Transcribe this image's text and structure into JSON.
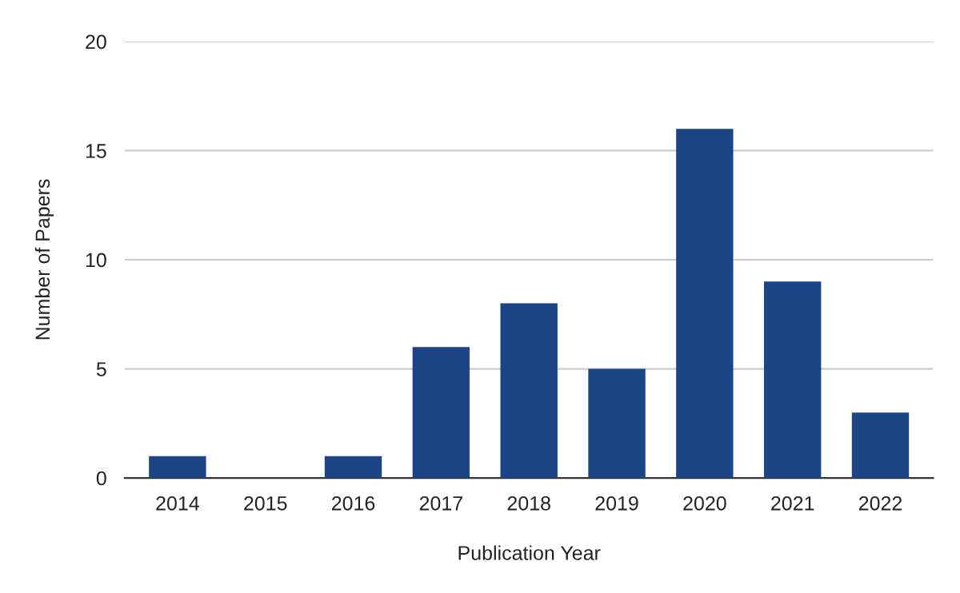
{
  "chart_data": {
    "type": "bar",
    "xlabel": "Publication Year",
    "ylabel": "Number of Papers",
    "categories": [
      "2014",
      "2015",
      "2016",
      "2017",
      "2018",
      "2019",
      "2020",
      "2021",
      "2022"
    ],
    "values": [
      1,
      0,
      1,
      6,
      8,
      5,
      16,
      9,
      3
    ],
    "color": "#1c4587",
    "ylim": [
      0,
      20
    ],
    "yticks": [
      0,
      5,
      10,
      15,
      20
    ],
    "grid": "y",
    "legend": false
  }
}
